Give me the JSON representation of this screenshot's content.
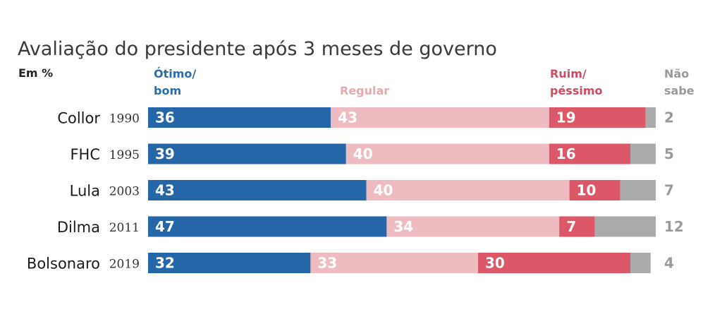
{
  "chart_data": {
    "type": "bar",
    "orientation": "horizontal",
    "stacked": true,
    "title": "Avaliação do presidente após 3 meses de governo",
    "unit_label": "Em %",
    "categories": [
      {
        "name": "Collor",
        "year": "1990"
      },
      {
        "name": "FHC",
        "year": "1995"
      },
      {
        "name": "Lula",
        "year": "2003"
      },
      {
        "name": "Dilma",
        "year": "2011"
      },
      {
        "name": "Bolsonaro",
        "year": "2019"
      }
    ],
    "series": [
      {
        "key": "otimo",
        "legend": [
          "Ótimo/",
          "bom"
        ],
        "color": "#2466a8",
        "label_color": "#ffffff",
        "values": [
          36,
          39,
          43,
          47,
          32
        ]
      },
      {
        "key": "regular",
        "legend": [
          "Regular"
        ],
        "color": "#eebcc0",
        "label_color": "#ffffff",
        "values": [
          43,
          40,
          40,
          34,
          33
        ]
      },
      {
        "key": "ruim",
        "legend": [
          "Ruim/",
          "péssimo"
        ],
        "color": "#dc5768",
        "label_color": "#ffffff",
        "values": [
          19,
          16,
          10,
          7,
          30
        ]
      },
      {
        "key": "naosabe",
        "legend": [
          "Não",
          "sabe"
        ],
        "color": "#aaaaaa",
        "label_color": "#9a9a9a",
        "values": [
          2,
          5,
          7,
          12,
          4
        ]
      }
    ],
    "legend_colors": [
      "#2b6cad",
      "#e7a9b0",
      "#cf4a62",
      "#999999"
    ],
    "xlim": [
      0,
      100
    ]
  }
}
